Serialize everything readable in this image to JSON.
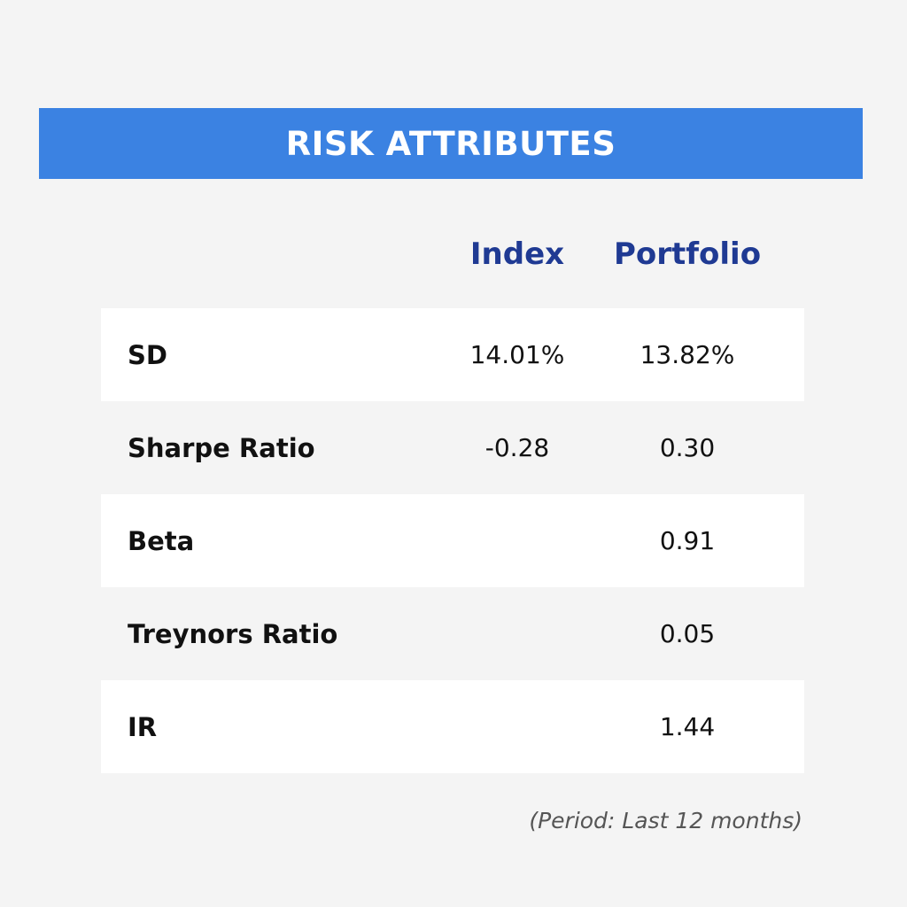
{
  "title": "RISK ATTRIBUTES",
  "columns": {
    "index": "Index",
    "portfolio": "Portfolio"
  },
  "rows": [
    {
      "label": "SD",
      "index": "14.01%",
      "portfolio": "13.82%"
    },
    {
      "label": "Sharpe Ratio",
      "index": "-0.28",
      "portfolio": "0.30"
    },
    {
      "label": "Beta",
      "index": "",
      "portfolio": "0.91"
    },
    {
      "label": "Treynors Ratio",
      "index": "",
      "portfolio": "0.05"
    },
    {
      "label": "IR",
      "index": "",
      "portfolio": "1.44"
    }
  ],
  "footnote": "(Period: Last 12 months)",
  "colors": {
    "banner": "#3b82e2",
    "header_text": "#1f3a93",
    "background": "#f4f4f4",
    "row_shaded": "#ffffff"
  }
}
